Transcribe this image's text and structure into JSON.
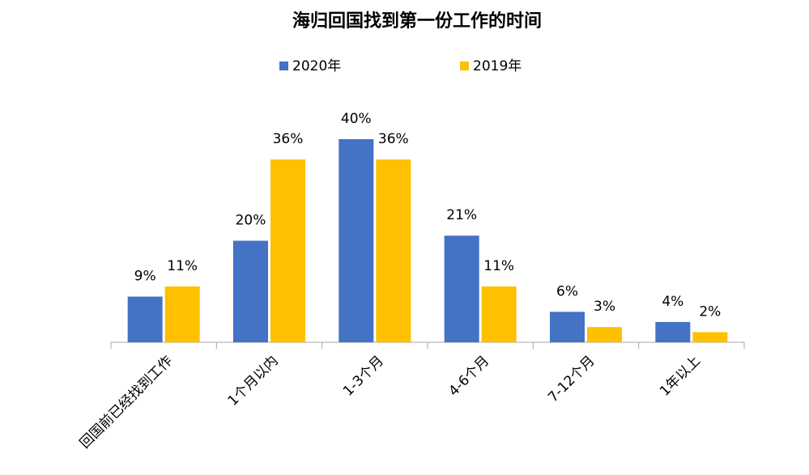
{
  "chart_data": {
    "type": "bar",
    "title": "海归回国找到第一份工作的时间",
    "categories": [
      "回国前已经找到工作",
      "1个月以内",
      "1-3个月",
      "4-6个月",
      "7-12个月",
      "1年以上"
    ],
    "series": [
      {
        "name": "2020年",
        "color": "#4472c4",
        "values": [
          9,
          20,
          40,
          21,
          6,
          4
        ],
        "value_labels": [
          "9%",
          "20%",
          "40%",
          "21%",
          "6%",
          "4%"
        ]
      },
      {
        "name": "2019年",
        "color": "#ffc000",
        "values": [
          11,
          36,
          36,
          11,
          3,
          2
        ],
        "value_labels": [
          "11%",
          "36%",
          "36%",
          "11%",
          "3%",
          "2%"
        ]
      }
    ]
  }
}
